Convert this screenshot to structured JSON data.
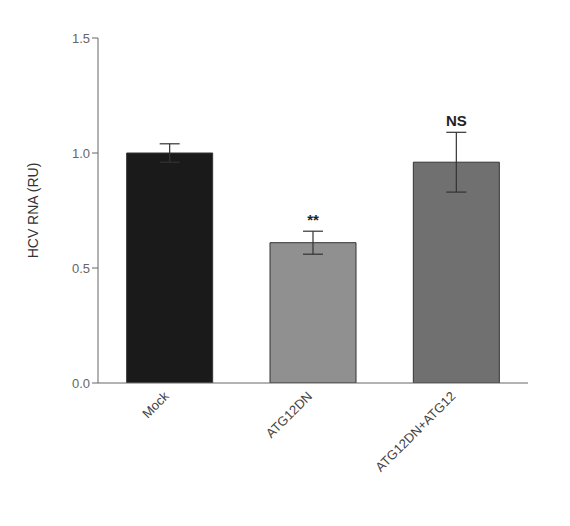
{
  "chart_data": {
    "type": "bar",
    "categories": [
      "Mock",
      "ATG12DN",
      "ATG12DN+ATG12"
    ],
    "values": [
      1.0,
      0.61,
      0.96
    ],
    "errors": [
      0.04,
      0.05,
      0.13
    ],
    "colors": [
      "#1a1a1a",
      "#909090",
      "#707070"
    ],
    "ylabel": "HCV RNA (RU)",
    "ylim": [
      0,
      1.5
    ],
    "yticks": [
      {
        "value": 0,
        "label": "0.0"
      },
      {
        "value": 0.5,
        "label": "0.5"
      },
      {
        "value": 1,
        "label": "1.0"
      },
      {
        "value": 1.5,
        "label": "1.5"
      }
    ],
    "annotations": [
      null,
      "**",
      "NS"
    ],
    "grid": false
  }
}
